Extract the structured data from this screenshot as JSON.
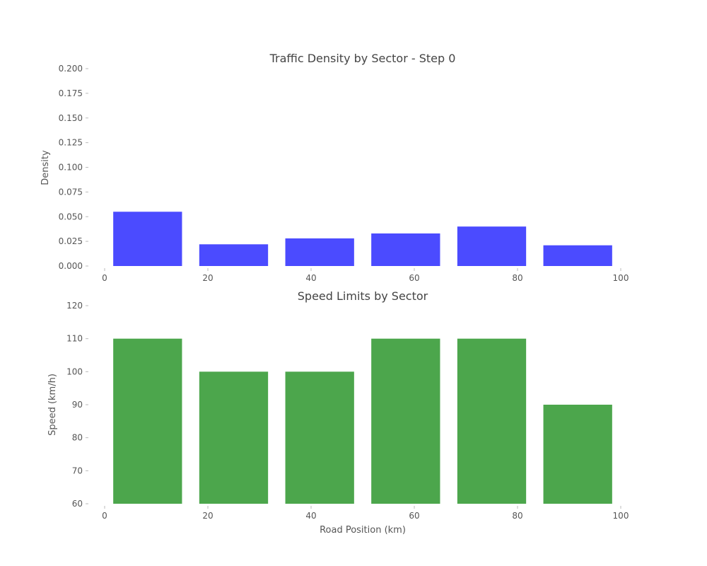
{
  "chart_data": [
    {
      "type": "bar",
      "title": "Traffic Density by Sector - Step 0",
      "xlabel": "",
      "ylabel": "Density",
      "x_bar_centers": [
        8.33,
        25,
        41.67,
        58.33,
        75,
        91.67
      ],
      "bar_width": 13.33,
      "values": [
        0.055,
        0.022,
        0.028,
        0.033,
        0.04,
        0.021
      ],
      "xlim": [
        0,
        100
      ],
      "ylim": [
        0,
        0.2
      ],
      "xticks": [
        "0",
        "20",
        "40",
        "60",
        "80",
        "100"
      ],
      "yticks": [
        "0.000",
        "0.025",
        "0.050",
        "0.075",
        "0.100",
        "0.125",
        "0.150",
        "0.175",
        "0.200"
      ],
      "color": "#4b4bff",
      "grid": false
    },
    {
      "type": "bar",
      "title": "Speed Limits by Sector",
      "xlabel": "Road Position (km)",
      "ylabel": "Speed (km/h)",
      "x_bar_centers": [
        8.33,
        25,
        41.67,
        58.33,
        75,
        91.67
      ],
      "bar_width": 13.33,
      "values": [
        110,
        100,
        100,
        110,
        110,
        90
      ],
      "xlim": [
        0,
        100
      ],
      "ylim": [
        60,
        120
      ],
      "xticks": [
        "0",
        "20",
        "40",
        "60",
        "80",
        "100"
      ],
      "yticks": [
        "60",
        "70",
        "80",
        "90",
        "100",
        "110",
        "120"
      ],
      "color": "#4ca64c",
      "grid": false
    }
  ]
}
